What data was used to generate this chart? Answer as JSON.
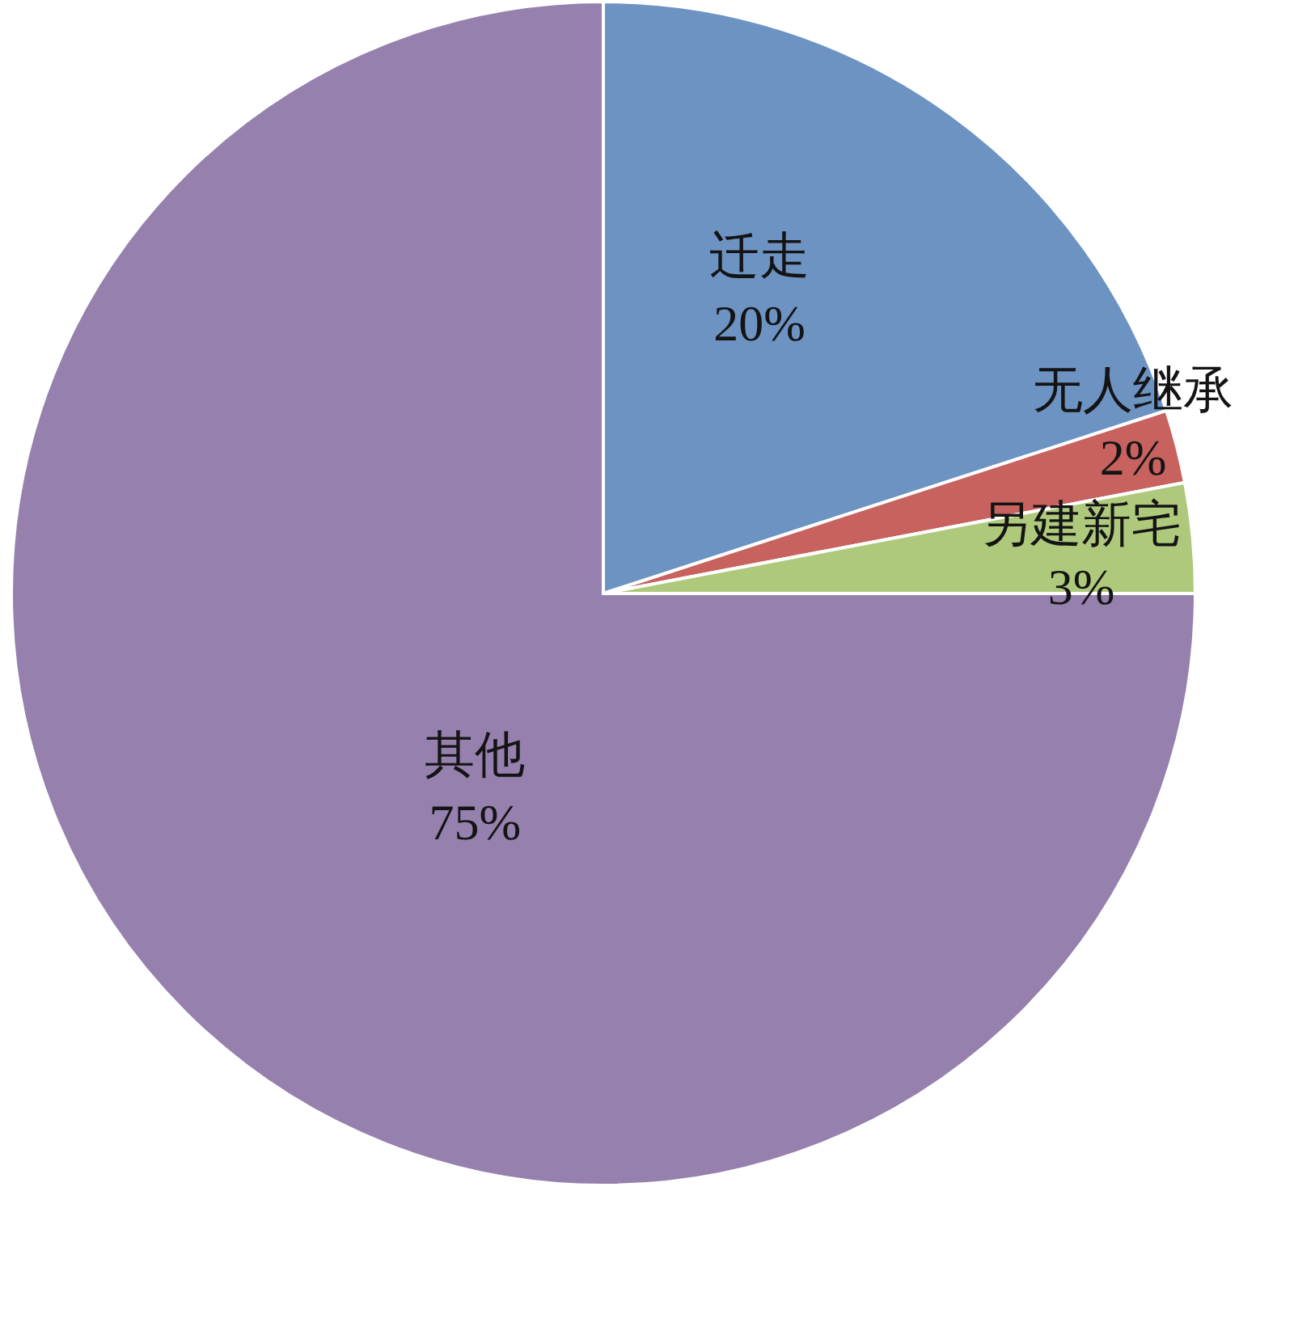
{
  "chart_data": {
    "type": "pie",
    "categories": [
      "迁走",
      "无人继承",
      "另建新宅",
      "其他"
    ],
    "values": [
      20,
      2,
      3,
      75
    ],
    "value_labels": [
      "20%",
      "2%",
      "3%",
      "75%"
    ],
    "colors": [
      "#6d93c3",
      "#c8625f",
      "#afc97c",
      "#9580ae"
    ]
  }
}
